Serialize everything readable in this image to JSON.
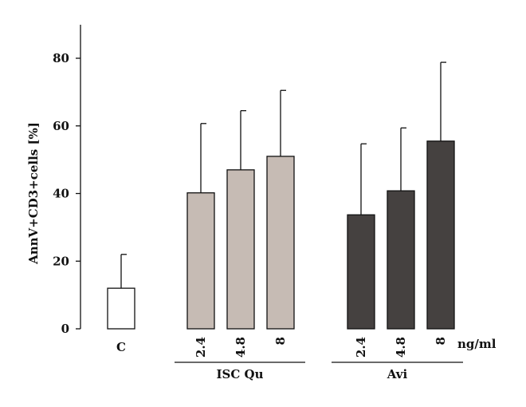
{
  "chart_data": {
    "type": "bar",
    "title": "",
    "ylabel": "AnnV+CD3+cells [%]",
    "xlabel": "",
    "ylim": [
      0,
      90
    ],
    "yticks": [
      0,
      20,
      40,
      60,
      80
    ],
    "grid": false,
    "unit_label": "ng/ml",
    "categories": [
      "C",
      "2.4",
      "4.8",
      "8",
      "2.4",
      "4.8",
      "8"
    ],
    "values": [
      12,
      40.2,
      47,
      51,
      33.7,
      40.8,
      55.5
    ],
    "errors": [
      10,
      20.5,
      17.5,
      19.5,
      21,
      18.6,
      23.3
    ],
    "groups": [
      {
        "label": "",
        "indices": [
          0
        ]
      },
      {
        "label": "ISC Qu",
        "indices": [
          1,
          2,
          3
        ]
      },
      {
        "label": "Avi",
        "indices": [
          4,
          5,
          6
        ]
      }
    ],
    "colors": [
      "#ffffff",
      "#c6bbb4",
      "#c6bbb4",
      "#c6bbb4",
      "#454140",
      "#454140",
      "#454140"
    ]
  }
}
